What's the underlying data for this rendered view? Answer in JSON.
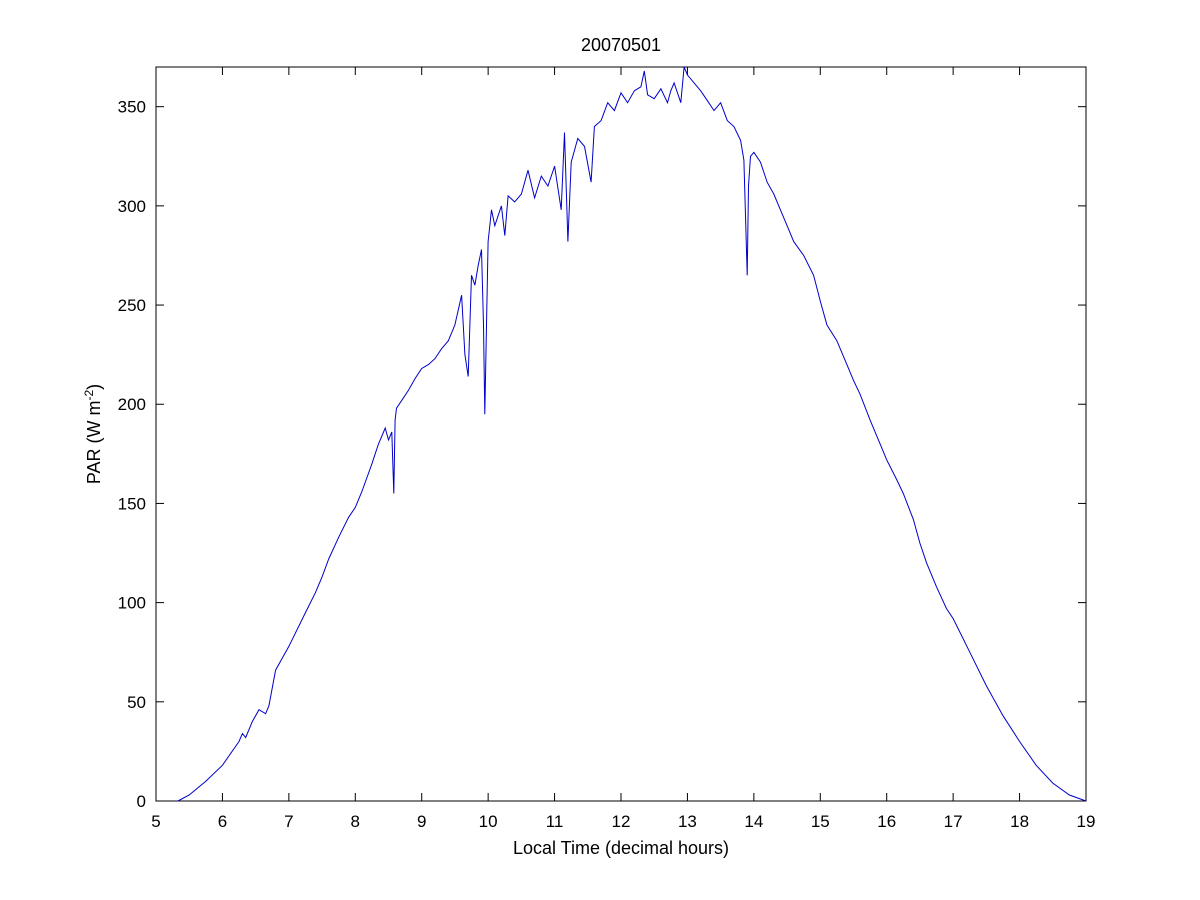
{
  "chart_data": {
    "type": "line",
    "title": "20070501",
    "xlabel": "Local Time (decimal hours)",
    "ylabel": {
      "text": "PAR (W m",
      "superscript": "-2",
      "suffix": ")"
    },
    "xlim": [
      5,
      19
    ],
    "ylim": [
      0,
      370
    ],
    "xticks": [
      5,
      6,
      7,
      8,
      9,
      10,
      11,
      12,
      13,
      14,
      15,
      16,
      17,
      18,
      19
    ],
    "yticks": [
      0,
      50,
      100,
      150,
      200,
      250,
      300,
      350
    ],
    "grid": false,
    "line_color": "#0000cc",
    "series": [
      {
        "x": [
          5.33,
          5.5,
          5.75,
          6.0,
          6.25,
          6.3,
          6.35,
          6.45,
          6.55,
          6.65,
          6.7,
          6.8,
          7.0,
          7.25,
          7.4,
          7.5,
          7.6,
          7.75,
          7.9,
          8.0,
          8.1,
          8.25,
          8.3,
          8.35,
          8.4,
          8.45,
          8.5,
          8.55,
          8.58,
          8.6,
          8.62,
          8.7,
          8.8,
          8.9,
          9.0,
          9.1,
          9.2,
          9.3,
          9.4,
          9.5,
          9.6,
          9.65,
          9.7,
          9.75,
          9.8,
          9.85,
          9.9,
          9.93,
          9.95,
          10.0,
          10.05,
          10.1,
          10.2,
          10.25,
          10.3,
          10.4,
          10.5,
          10.6,
          10.7,
          10.8,
          10.9,
          11.0,
          11.1,
          11.15,
          11.2,
          11.25,
          11.35,
          11.45,
          11.55,
          11.6,
          11.7,
          11.8,
          11.9,
          12.0,
          12.1,
          12.2,
          12.3,
          12.35,
          12.4,
          12.5,
          12.6,
          12.7,
          12.75,
          12.8,
          12.9,
          12.95,
          13.0,
          13.1,
          13.2,
          13.3,
          13.4,
          13.5,
          13.6,
          13.7,
          13.8,
          13.85,
          13.9,
          13.92,
          13.95,
          14.0,
          14.1,
          14.2,
          14.3,
          14.4,
          14.5,
          14.6,
          14.75,
          14.9,
          15.0,
          15.1,
          15.25,
          15.4,
          15.5,
          15.6,
          15.75,
          15.9,
          16.0,
          16.15,
          16.25,
          16.4,
          16.5,
          16.6,
          16.75,
          16.9,
          17.0,
          17.25,
          17.5,
          17.75,
          18.0,
          18.25,
          18.5,
          18.75,
          19.0
        ],
        "y": [
          0,
          3,
          10,
          18,
          30,
          34,
          32,
          40,
          46,
          44,
          48,
          66,
          78,
          95,
          105,
          113,
          122,
          133,
          143,
          148,
          156,
          170,
          175,
          180,
          184,
          188,
          182,
          186,
          155,
          192,
          198,
          202,
          207,
          213,
          218,
          220,
          223,
          228,
          232,
          240,
          255,
          225,
          214,
          265,
          260,
          270,
          278,
          240,
          195,
          282,
          298,
          290,
          300,
          285,
          305,
          302,
          306,
          318,
          304,
          315,
          310,
          320,
          298,
          337,
          282,
          322,
          334,
          330,
          312,
          340,
          343,
          352,
          348,
          357,
          352,
          358,
          360,
          368,
          356,
          354,
          359,
          352,
          358,
          362,
          352,
          370,
          366,
          362,
          358,
          353,
          348,
          352,
          343,
          340,
          333,
          323,
          265,
          310,
          325,
          327,
          322,
          312,
          306,
          298,
          290,
          282,
          275,
          265,
          252,
          240,
          232,
          220,
          212,
          205,
          192,
          180,
          172,
          162,
          155,
          142,
          130,
          120,
          108,
          97,
          92,
          75,
          58,
          43,
          30,
          18,
          9,
          3,
          0
        ]
      }
    ]
  }
}
